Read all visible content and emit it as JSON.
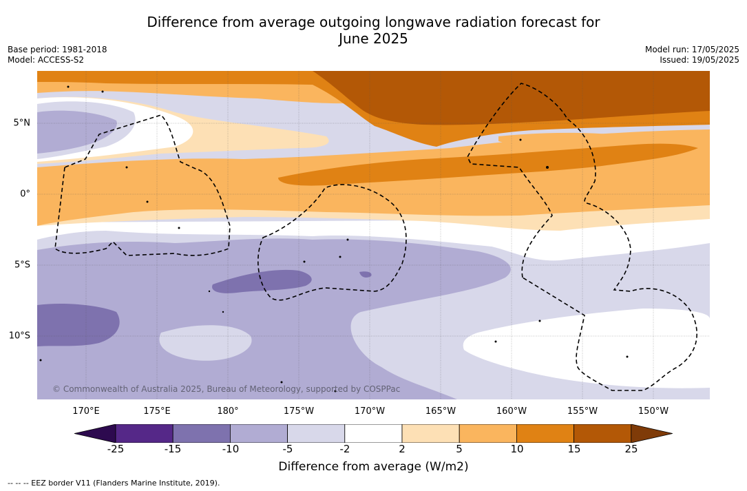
{
  "title": {
    "line1": "Difference from average outgoing longwave radiation forecast for",
    "line2": "June 2025"
  },
  "meta_left": {
    "base_period": "Base period: 1981-2018",
    "model": "Model: ACCESS-S2"
  },
  "meta_right": {
    "model_run": "Model run: 17/05/2025",
    "issued": "Issued: 19/05/2025"
  },
  "map": {
    "lat_labels": [
      "5°N",
      "0°",
      "5°S",
      "10°S"
    ],
    "lon_labels": [
      "170°E",
      "175°E",
      "180°",
      "175°W",
      "170°W",
      "165°W",
      "160°W",
      "155°W",
      "150°W"
    ],
    "copyright": "© Commonwealth of Australia 2025, Bureau of Meteorology, supported by COSPPac"
  },
  "colorbar": {
    "ticks": [
      "-25",
      "-15",
      "-10",
      "-5",
      "-2",
      "2",
      "5",
      "10",
      "15",
      "25"
    ],
    "colors": [
      "#2d0a4f",
      "#552888",
      "#7e72ae",
      "#b1acd3",
      "#d8d8ea",
      "#ffffff",
      "#fde0b5",
      "#fab55e",
      "#e08214",
      "#b35806",
      "#7f3b08"
    ],
    "label": "Difference from average (W/m2)"
  },
  "legend": "--  --  -- EEZ border V11 (Flanders Marine Institute, 2019)."
}
